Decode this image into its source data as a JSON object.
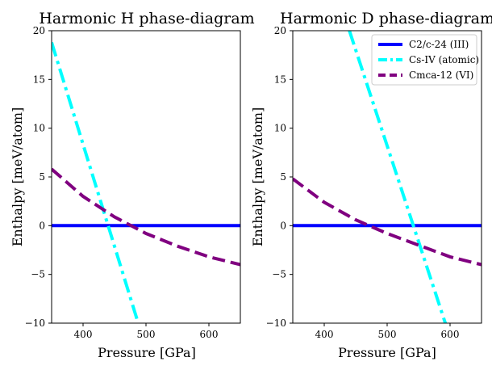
{
  "chart_data": [
    {
      "type": "line",
      "title": "Harmonic H phase-diagram",
      "xlabel": "Pressure [GPa]",
      "ylabel": "Enthalpy [meV/atom]",
      "xlim": [
        350,
        650
      ],
      "ylim": [
        -10,
        20
      ],
      "xticks": [
        400,
        500,
        600
      ],
      "yticks": [
        -10,
        -5,
        0,
        5,
        10,
        15,
        20
      ],
      "legend": null,
      "series": [
        {
          "name": "C2/c-24 (III)",
          "color": "#0000ff",
          "style": "solid",
          "x": [
            350,
            650
          ],
          "y": [
            0,
            0
          ]
        },
        {
          "name": "Cs-IV (atomic)",
          "color": "#00ffff",
          "style": "dashdot",
          "x": [
            350,
            490
          ],
          "y": [
            18.8,
            -10.5
          ]
        },
        {
          "name": "Cmca-12 (VI)",
          "color": "#800080",
          "style": "dashed",
          "x": [
            350,
            400,
            450,
            500,
            550,
            600,
            650
          ],
          "y": [
            5.8,
            3.0,
            0.9,
            -0.8,
            -2.1,
            -3.2,
            -4.0
          ]
        }
      ]
    },
    {
      "type": "line",
      "title": "Harmonic D phase-diagram",
      "xlabel": "Pressure [GPa]",
      "ylabel": "Enthalpy [meV/atom]",
      "xlim": [
        350,
        650
      ],
      "ylim": [
        -10,
        20
      ],
      "xticks": [
        400,
        500,
        600
      ],
      "yticks": [
        -10,
        -5,
        0,
        5,
        10,
        15,
        20
      ],
      "legend": "top-right",
      "series": [
        {
          "name": "C2/c-24 (III)",
          "color": "#0000ff",
          "style": "solid",
          "x": [
            350,
            650
          ],
          "y": [
            0,
            0
          ]
        },
        {
          "name": "Cs-IV (atomic)",
          "color": "#00ffff",
          "style": "dashdot",
          "x": [
            440,
            595
          ],
          "y": [
            20.0,
            -10.5
          ]
        },
        {
          "name": "Cmca-12 (VI)",
          "color": "#800080",
          "style": "dashed",
          "x": [
            350,
            400,
            450,
            500,
            550,
            600,
            650
          ],
          "y": [
            4.8,
            2.4,
            0.6,
            -0.8,
            -2.0,
            -3.2,
            -4.0
          ]
        }
      ]
    }
  ]
}
